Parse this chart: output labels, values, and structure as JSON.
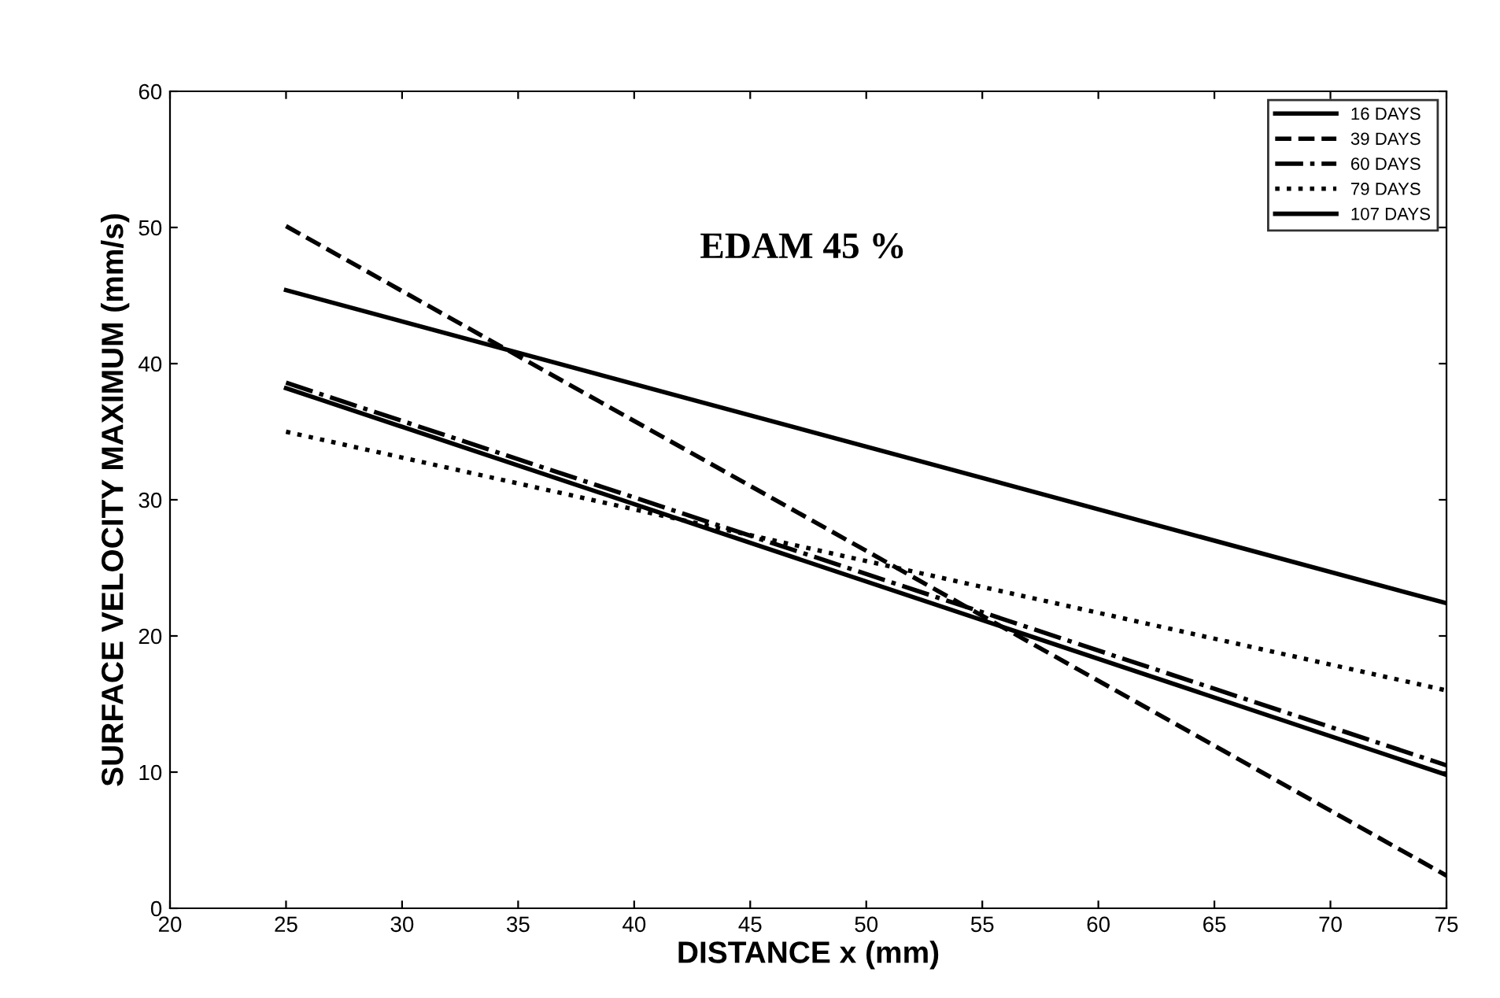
{
  "chart_data": {
    "type": "line",
    "xlabel": "DISTANCE x (mm)",
    "ylabel": "SURFACE VELOCITY MAXIMUM (mm/s)",
    "x": [
      25,
      75
    ],
    "series": [
      {
        "name": "16 DAYS",
        "color": "#000000",
        "values": [
          45.4,
          22.4
        ],
        "line_style": "solid"
      },
      {
        "name": "39 DAYS",
        "color": "#000000",
        "values": [
          50.1,
          2.4
        ],
        "line_style": "dashed"
      },
      {
        "name": "60 DAYS",
        "color": "#000000",
        "values": [
          38.6,
          10.5
        ],
        "line_style": "dashdot"
      },
      {
        "name": "79 DAYS",
        "color": "#000000",
        "values": [
          35.0,
          16.0
        ],
        "line_style": "dotted"
      },
      {
        "name": "107 DAYS",
        "color": "#000000",
        "values": [
          38.2,
          9.8
        ],
        "line_style": "solid"
      }
    ],
    "annotations": [
      "EDAM 45 %"
    ],
    "xlim": [
      20,
      75
    ],
    "xticks": [
      20,
      25,
      30,
      35,
      40,
      45,
      50,
      55,
      60,
      65,
      70,
      75
    ],
    "ylim": [
      0,
      60
    ],
    "yticks": [
      0,
      10,
      20,
      30,
      40,
      50,
      60
    ],
    "grid": false,
    "legend": "top right",
    "marker": "none"
  }
}
